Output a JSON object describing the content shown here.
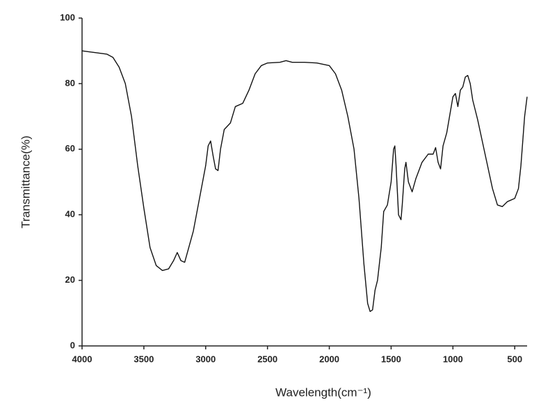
{
  "chart_data": {
    "type": "line",
    "x_label": "Wavelength(cm⁻¹)",
    "y_label": "Transmittance(%)",
    "x": [
      4000,
      3900,
      3800,
      3750,
      3700,
      3650,
      3600,
      3550,
      3500,
      3450,
      3400,
      3350,
      3300,
      3260,
      3230,
      3200,
      3170,
      3100,
      3050,
      3000,
      2980,
      2960,
      2940,
      2920,
      2900,
      2880,
      2850,
      2800,
      2760,
      2700,
      2650,
      2600,
      2550,
      2500,
      2400,
      2350,
      2300,
      2200,
      2100,
      2000,
      1950,
      1900,
      1850,
      1800,
      1760,
      1720,
      1690,
      1670,
      1650,
      1630,
      1610,
      1580,
      1560,
      1530,
      1500,
      1480,
      1470,
      1460,
      1440,
      1420,
      1410,
      1390,
      1380,
      1360,
      1330,
      1300,
      1250,
      1200,
      1160,
      1140,
      1120,
      1100,
      1080,
      1050,
      1000,
      980,
      960,
      940,
      920,
      900,
      880,
      860,
      840,
      800,
      760,
      720,
      680,
      640,
      600,
      560,
      500,
      470,
      450,
      420,
      400
    ],
    "series": [
      {
        "color": "#111111",
        "values": [
          90,
          89.5,
          89,
          88,
          85,
          80,
          70,
          55,
          42,
          30,
          24.5,
          23,
          23.5,
          26,
          28.5,
          26,
          25.5,
          35,
          45,
          55,
          61,
          62.5,
          58,
          54,
          53.5,
          60,
          66,
          68,
          73,
          74,
          78,
          83,
          85.5,
          86.3,
          86.5,
          87,
          86.5,
          86.5,
          86.3,
          85.5,
          83,
          78,
          70,
          60,
          45,
          25,
          13,
          10.5,
          11,
          17,
          20,
          30,
          41,
          43,
          50,
          60,
          61,
          55,
          40,
          38.5,
          43,
          54,
          56,
          50,
          47,
          51,
          56,
          58.5,
          58.5,
          60.5,
          56,
          54,
          61,
          65,
          76,
          77,
          73,
          78,
          79,
          82,
          82.5,
          80,
          75,
          69,
          62,
          55,
          48,
          43,
          42.5,
          44,
          45,
          48,
          55,
          70,
          76
        ]
      }
    ],
    "xlim": [
      4000,
      400
    ],
    "xticks": [
      4000,
      3500,
      3000,
      2500,
      2000,
      1500,
      1000,
      500
    ],
    "ylim": [
      0,
      100
    ],
    "yticks": [
      0,
      20,
      40,
      60,
      80,
      100
    ],
    "grid": false
  }
}
